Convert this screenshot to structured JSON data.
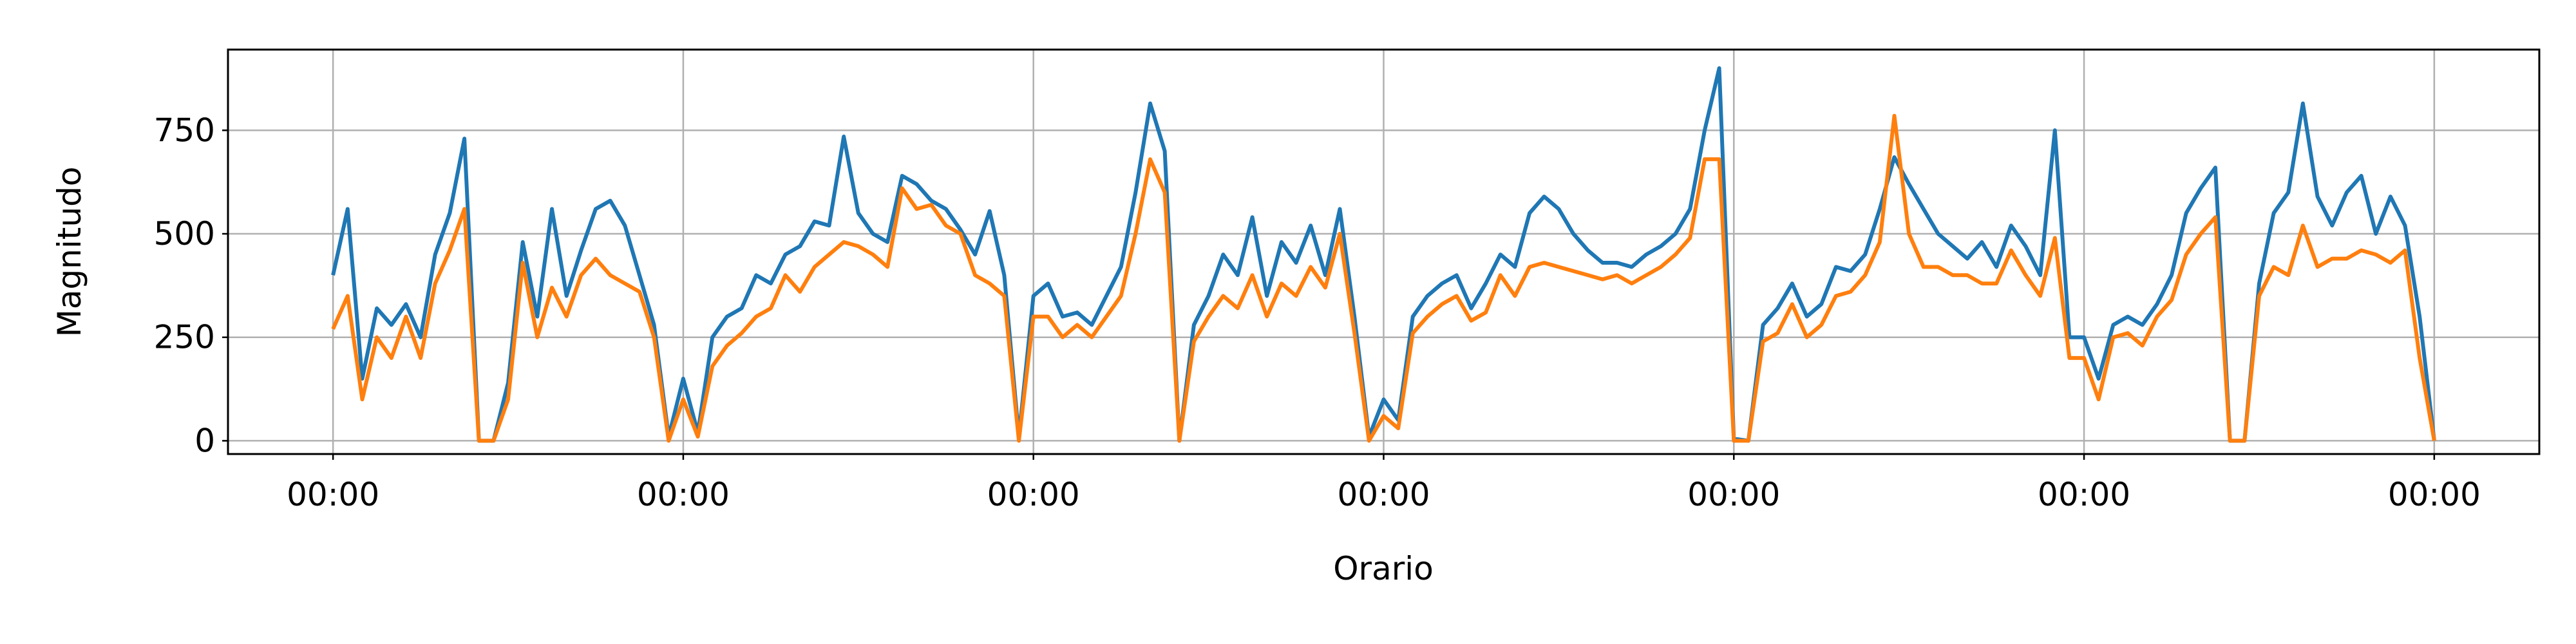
{
  "chart_data": {
    "type": "line",
    "xlabel": "Orario",
    "ylabel": "Magnitudo",
    "x": [
      0,
      1,
      2,
      3,
      4,
      5,
      6,
      7,
      8,
      9,
      10,
      11,
      12,
      13,
      14,
      15,
      16,
      17,
      18,
      19,
      20,
      21,
      22,
      23,
      24,
      25,
      26,
      27,
      28,
      29,
      30,
      31,
      32,
      33,
      34,
      35,
      36,
      37,
      38,
      39,
      40,
      41,
      42,
      43,
      44,
      45,
      46,
      47,
      48,
      49,
      50,
      51,
      52,
      53,
      54,
      55,
      56,
      57,
      58,
      59,
      60,
      61,
      62,
      63,
      64,
      65,
      66,
      67,
      68,
      69,
      70,
      71,
      72,
      73,
      74,
      75,
      76,
      77,
      78,
      79,
      80,
      81,
      82,
      83,
      84,
      85,
      86,
      87,
      88,
      89,
      90,
      91,
      92,
      93,
      94,
      95,
      96,
      97,
      98,
      99,
      100,
      101,
      102,
      103,
      104,
      105,
      106,
      107,
      108,
      109,
      110,
      111,
      112,
      113,
      114,
      115,
      116,
      117,
      118,
      119,
      120,
      121,
      122,
      123,
      124,
      125,
      126,
      127,
      128,
      129,
      130,
      131,
      132,
      133,
      134,
      135,
      136,
      137,
      138,
      139,
      140,
      141,
      142,
      143,
      144
    ],
    "series": [
      {
        "color": "#1f77b4",
        "values": [
          400,
          560,
          150,
          320,
          280,
          330,
          250,
          450,
          550,
          730,
          0,
          0,
          140,
          480,
          300,
          560,
          350,
          460,
          560,
          580,
          520,
          400,
          280,
          10,
          150,
          20,
          250,
          300,
          320,
          400,
          380,
          450,
          470,
          530,
          520,
          735,
          550,
          500,
          480,
          640,
          620,
          580,
          560,
          510,
          450,
          555,
          400,
          10,
          350,
          380,
          300,
          310,
          280,
          350,
          420,
          600,
          815,
          700,
          0,
          280,
          350,
          450,
          400,
          540,
          350,
          480,
          430,
          520,
          400,
          560,
          300,
          10,
          100,
          50,
          300,
          350,
          380,
          400,
          320,
          380,
          450,
          420,
          550,
          590,
          560,
          500,
          460,
          430,
          430,
          420,
          450,
          470,
          500,
          560,
          750,
          900,
          5,
          0,
          280,
          320,
          380,
          300,
          330,
          420,
          410,
          450,
          560,
          685,
          620,
          560,
          500,
          470,
          440,
          480,
          420,
          520,
          470,
          400,
          750,
          250,
          250,
          150,
          280,
          300,
          280,
          330,
          400,
          550,
          610,
          660,
          0,
          0,
          380,
          550,
          600,
          815,
          590,
          520,
          600,
          640,
          500,
          590,
          520,
          300,
          0
        ]
      },
      {
        "color": "#ff7f0e",
        "values": [
          270,
          350,
          100,
          250,
          200,
          300,
          200,
          380,
          460,
          560,
          0,
          0,
          100,
          430,
          250,
          370,
          300,
          400,
          440,
          400,
          380,
          360,
          250,
          0,
          100,
          10,
          180,
          230,
          260,
          300,
          320,
          400,
          360,
          420,
          450,
          480,
          470,
          450,
          420,
          610,
          560,
          570,
          520,
          500,
          400,
          380,
          350,
          0,
          300,
          300,
          250,
          280,
          250,
          300,
          350,
          500,
          680,
          600,
          0,
          240,
          300,
          350,
          320,
          400,
          300,
          380,
          350,
          420,
          370,
          500,
          260,
          0,
          60,
          30,
          260,
          300,
          330,
          350,
          290,
          310,
          400,
          350,
          420,
          430,
          420,
          410,
          400,
          390,
          400,
          380,
          400,
          420,
          450,
          490,
          680,
          680,
          0,
          0,
          240,
          260,
          330,
          250,
          280,
          350,
          360,
          400,
          480,
          785,
          500,
          420,
          420,
          400,
          400,
          380,
          380,
          460,
          400,
          350,
          490,
          200,
          200,
          100,
          250,
          260,
          230,
          300,
          340,
          450,
          500,
          540,
          0,
          0,
          350,
          420,
          400,
          520,
          420,
          440,
          440,
          460,
          450,
          430,
          460,
          200,
          0
        ]
      }
    ],
    "xlim": [
      -7.2,
      151.2
    ],
    "xticks": [
      {
        "value": 0,
        "label": "00:00"
      },
      {
        "value": 24,
        "label": "00:00"
      },
      {
        "value": 48,
        "label": "00:00"
      },
      {
        "value": 72,
        "label": "00:00"
      },
      {
        "value": 96,
        "label": "00:00"
      },
      {
        "value": 120,
        "label": "00:00"
      },
      {
        "value": 144,
        "label": "00:00"
      }
    ],
    "ylim": [
      -32,
      945
    ],
    "yticks": [
      0,
      250,
      500,
      750
    ],
    "grid": true
  }
}
